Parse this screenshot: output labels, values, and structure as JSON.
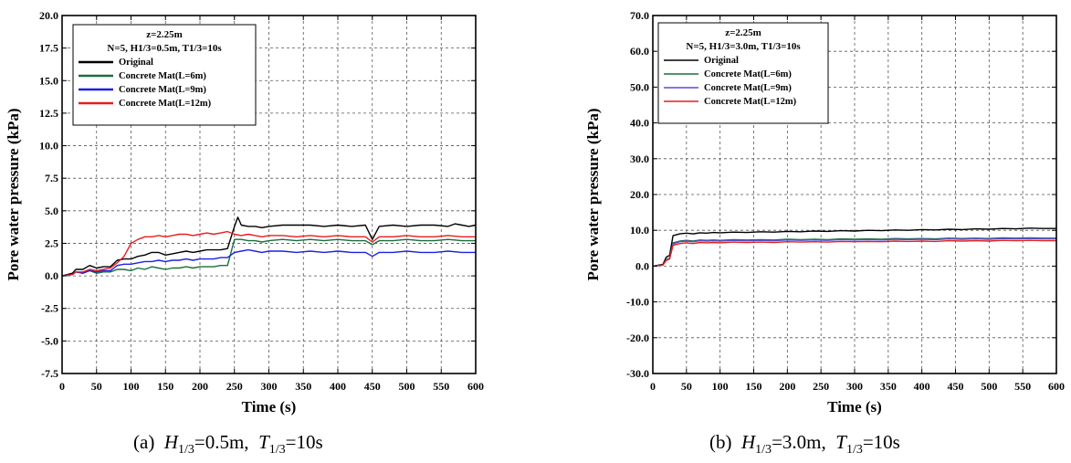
{
  "chart_data": [
    {
      "type": "line",
      "xlabel": "Time (s)",
      "ylabel": "Pore water pressure (kPa)",
      "xlim": [
        0,
        600
      ],
      "ylim": [
        -7.5,
        20.0
      ],
      "xticks": [
        "0",
        "50",
        "100",
        "150",
        "200",
        "250",
        "300",
        "350",
        "400",
        "450",
        "500",
        "550",
        "600"
      ],
      "yticks": [
        "-7.5",
        "-5.0",
        "-2.5",
        "0.0",
        "2.5",
        "5.0",
        "7.5",
        "10.0",
        "12.5",
        "15.0",
        "17.5",
        "20.0"
      ],
      "grid": true,
      "legend_position": "top-left",
      "legend_title_lines": [
        "z=2.25m",
        "N=5, H1/3=0.5m, T1/3=10s"
      ],
      "caption": {
        "label": "(a)",
        "h_sym": "H",
        "h_sub": "1/3",
        "h_val": "=0.5m,",
        "t_sym": "T",
        "t_sub": "1/3",
        "t_val": "=10s"
      },
      "series": [
        {
          "name": "Original",
          "color": "#000000",
          "x": [
            0,
            15,
            20,
            30,
            40,
            50,
            60,
            70,
            80,
            90,
            100,
            110,
            120,
            130,
            140,
            150,
            160,
            170,
            180,
            190,
            200,
            210,
            220,
            230,
            240,
            250,
            255,
            260,
            270,
            280,
            290,
            300,
            320,
            340,
            360,
            380,
            400,
            420,
            440,
            450,
            460,
            480,
            500,
            520,
            540,
            560,
            570,
            580,
            590,
            600
          ],
          "y": [
            0,
            0.2,
            0.5,
            0.5,
            0.8,
            0.6,
            0.7,
            0.7,
            1.2,
            1.3,
            1.3,
            1.5,
            1.6,
            1.8,
            1.8,
            1.6,
            1.7,
            1.8,
            1.9,
            1.8,
            1.9,
            2.0,
            2.0,
            2.0,
            2.1,
            3.8,
            4.5,
            3.9,
            3.8,
            3.8,
            3.7,
            3.8,
            3.9,
            3.9,
            3.9,
            3.8,
            3.9,
            3.8,
            3.9,
            2.8,
            3.8,
            3.9,
            3.8,
            3.9,
            3.9,
            3.8,
            4.0,
            3.9,
            3.8,
            3.9
          ]
        },
        {
          "name": "Concrete Mat(L=6m)",
          "color": "#1a6e3c",
          "x": [
            0,
            15,
            20,
            30,
            40,
            50,
            60,
            70,
            80,
            90,
            100,
            110,
            120,
            130,
            140,
            150,
            160,
            170,
            180,
            190,
            200,
            210,
            220,
            230,
            240,
            250,
            260,
            270,
            280,
            290,
            300,
            320,
            340,
            360,
            380,
            400,
            420,
            440,
            450,
            460,
            480,
            500,
            520,
            540,
            560,
            580,
            600
          ],
          "y": [
            0,
            0.1,
            0.3,
            0.2,
            0.4,
            0.2,
            0.3,
            0.3,
            0.5,
            0.5,
            0.4,
            0.6,
            0.5,
            0.7,
            0.6,
            0.5,
            0.6,
            0.6,
            0.7,
            0.6,
            0.7,
            0.7,
            0.7,
            0.8,
            0.8,
            2.8,
            2.8,
            2.7,
            2.7,
            2.6,
            2.7,
            2.8,
            2.7,
            2.8,
            2.7,
            2.8,
            2.7,
            2.7,
            2.4,
            2.7,
            2.7,
            2.8,
            2.7,
            2.7,
            2.8,
            2.7,
            2.7
          ]
        },
        {
          "name": "Concrete Mat(L=9m)",
          "color": "#1f1fe6",
          "x": [
            0,
            15,
            20,
            30,
            40,
            50,
            60,
            70,
            80,
            90,
            100,
            110,
            120,
            130,
            140,
            150,
            160,
            170,
            180,
            190,
            200,
            210,
            220,
            230,
            240,
            250,
            260,
            270,
            280,
            290,
            300,
            320,
            340,
            360,
            380,
            400,
            420,
            440,
            450,
            460,
            480,
            500,
            520,
            540,
            560,
            580,
            600
          ],
          "y": [
            0,
            0.1,
            0.3,
            0.2,
            0.4,
            0.3,
            0.4,
            0.4,
            0.8,
            0.9,
            0.9,
            1.0,
            1.1,
            1.1,
            1.2,
            1.1,
            1.2,
            1.2,
            1.3,
            1.2,
            1.3,
            1.3,
            1.3,
            1.4,
            1.4,
            1.8,
            1.9,
            2.0,
            1.9,
            1.8,
            1.9,
            1.9,
            1.8,
            1.9,
            1.8,
            1.9,
            1.8,
            1.8,
            1.5,
            1.8,
            1.8,
            1.9,
            1.8,
            1.8,
            1.9,
            1.8,
            1.8
          ]
        },
        {
          "name": "Concrete Mat(L=12m)",
          "color": "#e61e1e",
          "x": [
            0,
            15,
            20,
            30,
            40,
            50,
            60,
            70,
            80,
            90,
            100,
            110,
            120,
            130,
            140,
            150,
            160,
            170,
            180,
            190,
            200,
            210,
            220,
            230,
            240,
            250,
            260,
            270,
            280,
            290,
            300,
            320,
            340,
            360,
            380,
            400,
            420,
            440,
            450,
            460,
            480,
            500,
            520,
            540,
            560,
            580,
            600
          ],
          "y": [
            0,
            0.1,
            0.3,
            0.3,
            0.5,
            0.4,
            0.5,
            0.6,
            1.0,
            1.5,
            2.5,
            2.8,
            3.0,
            3.0,
            3.1,
            3.0,
            3.1,
            3.2,
            3.2,
            3.1,
            3.2,
            3.3,
            3.2,
            3.3,
            3.4,
            3.2,
            3.1,
            3.2,
            3.1,
            3.0,
            3.1,
            3.1,
            3.0,
            3.1,
            3.0,
            3.1,
            3.0,
            3.0,
            2.6,
            3.0,
            3.0,
            3.1,
            3.0,
            3.0,
            3.1,
            3.0,
            3.0
          ]
        }
      ]
    },
    {
      "type": "line",
      "xlabel": "Time (s)",
      "ylabel": "Pore water pressure (kPa)",
      "xlim": [
        0,
        600
      ],
      "ylim": [
        -30.0,
        70.0
      ],
      "xticks": [
        "0",
        "50",
        "100",
        "150",
        "200",
        "250",
        "300",
        "350",
        "400",
        "450",
        "500",
        "550",
        "600"
      ],
      "yticks": [
        "-30.0",
        "-20.0",
        "-10.0",
        "0.0",
        "10.0",
        "20.0",
        "30.0",
        "40.0",
        "50.0",
        "60.0",
        "70.0"
      ],
      "grid": true,
      "legend_position": "top-left",
      "legend_title_lines": [
        "z=2.25m",
        "N=5, H1/3=3.0m, T1/3=10s"
      ],
      "caption": {
        "label": "(b)",
        "h_sym": "H",
        "h_sub": "1/3",
        "h_val": "=3.0m,",
        "t_sym": "T",
        "t_sub": "1/3",
        "t_val": "=10s"
      },
      "series": [
        {
          "name": "Original",
          "color": "#000000",
          "x": [
            0,
            15,
            20,
            25,
            30,
            40,
            50,
            60,
            70,
            80,
            90,
            100,
            120,
            140,
            160,
            180,
            200,
            220,
            240,
            260,
            280,
            300,
            320,
            340,
            360,
            380,
            400,
            420,
            440,
            460,
            480,
            500,
            520,
            540,
            560,
            580,
            600
          ],
          "y": [
            0,
            0.5,
            2.5,
            3.0,
            8.5,
            9.0,
            9.2,
            9.0,
            9.3,
            9.2,
            9.4,
            9.3,
            9.5,
            9.4,
            9.6,
            9.5,
            9.7,
            9.6,
            9.8,
            9.7,
            9.9,
            9.8,
            10.0,
            9.9,
            10.1,
            10.0,
            10.2,
            10.1,
            10.3,
            10.2,
            10.4,
            10.3,
            10.5,
            10.4,
            10.6,
            10.5,
            10.5
          ]
        },
        {
          "name": "Concrete Mat(L=6m)",
          "color": "#1a6e3c",
          "x": [
            0,
            15,
            20,
            25,
            30,
            40,
            50,
            60,
            70,
            80,
            90,
            100,
            120,
            140,
            160,
            180,
            200,
            220,
            240,
            260,
            280,
            300,
            320,
            340,
            360,
            380,
            400,
            420,
            440,
            460,
            480,
            500,
            520,
            540,
            560,
            580,
            600
          ],
          "y": [
            0,
            0.3,
            1.8,
            2.2,
            6.5,
            7.0,
            7.2,
            7.0,
            7.3,
            7.2,
            7.3,
            7.2,
            7.4,
            7.3,
            7.4,
            7.3,
            7.5,
            7.4,
            7.5,
            7.4,
            7.6,
            7.5,
            7.6,
            7.5,
            7.7,
            7.6,
            7.7,
            7.6,
            7.8,
            7.7,
            7.8,
            7.7,
            7.9,
            7.8,
            7.9,
            7.8,
            7.8
          ]
        },
        {
          "name": "Concrete Mat(L=9m)",
          "color": "#5a4fd6",
          "x": [
            0,
            15,
            20,
            25,
            30,
            40,
            50,
            60,
            70,
            80,
            90,
            100,
            120,
            140,
            160,
            180,
            200,
            220,
            240,
            260,
            280,
            300,
            320,
            340,
            360,
            380,
            400,
            420,
            440,
            460,
            480,
            500,
            520,
            540,
            560,
            580,
            600
          ],
          "y": [
            0,
            0.3,
            1.7,
            2.1,
            6.2,
            6.8,
            7.0,
            6.8,
            7.1,
            7.0,
            7.1,
            7.0,
            7.2,
            7.1,
            7.2,
            7.1,
            7.3,
            7.2,
            7.3,
            7.2,
            7.4,
            7.3,
            7.4,
            7.3,
            7.5,
            7.4,
            7.5,
            7.4,
            7.6,
            7.5,
            7.6,
            7.5,
            7.7,
            7.6,
            7.7,
            7.6,
            7.6
          ]
        },
        {
          "name": "Concrete Mat(L=12m)",
          "color": "#e61e1e",
          "x": [
            0,
            15,
            20,
            25,
            30,
            40,
            50,
            60,
            70,
            80,
            90,
            100,
            120,
            140,
            160,
            180,
            200,
            220,
            240,
            260,
            280,
            300,
            320,
            340,
            360,
            380,
            400,
            420,
            440,
            460,
            480,
            500,
            520,
            540,
            560,
            580,
            600
          ],
          "y": [
            0,
            0.3,
            1.6,
            2.0,
            5.8,
            6.3,
            6.5,
            6.3,
            6.6,
            6.5,
            6.6,
            6.5,
            6.7,
            6.6,
            6.7,
            6.6,
            6.8,
            6.7,
            6.8,
            6.7,
            6.9,
            6.8,
            6.9,
            6.8,
            7.0,
            6.9,
            7.0,
            6.9,
            7.1,
            7.0,
            7.1,
            7.0,
            7.2,
            7.1,
            7.2,
            7.1,
            7.1
          ]
        }
      ]
    }
  ]
}
